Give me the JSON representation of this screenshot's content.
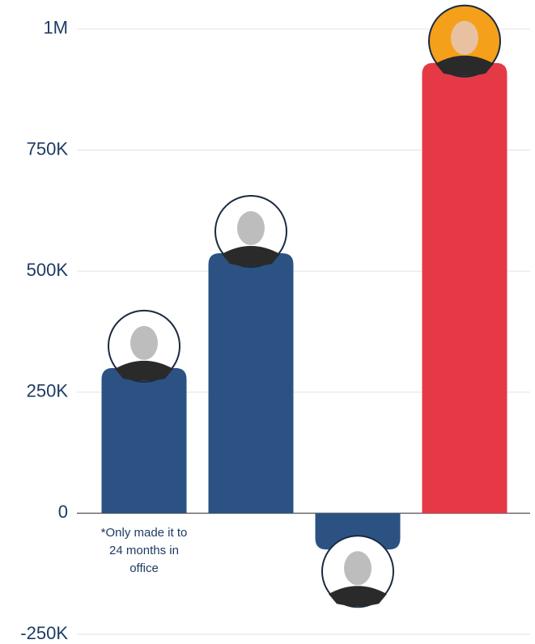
{
  "chart_data": {
    "type": "bar",
    "categories": [
      null,
      null,
      null,
      null
    ],
    "values": [
      300000,
      537000,
      -75000,
      930000
    ],
    "colors": [
      "#2b5283",
      "#2b5283",
      "#2b5283",
      "#e63946"
    ],
    "ylim": [
      -270000,
      1060000
    ],
    "yticks": [
      {
        "value": -250000,
        "label": "-250K"
      },
      0,
      {
        "value": 250000,
        "label": "250K"
      },
      {
        "value": 500000,
        "label": "500K"
      },
      {
        "value": 750000,
        "label": "750K"
      },
      {
        "value": 1000000,
        "label": "1M"
      }
    ],
    "grid": true,
    "annotation": "*Only made it to 24 months in office"
  }
}
